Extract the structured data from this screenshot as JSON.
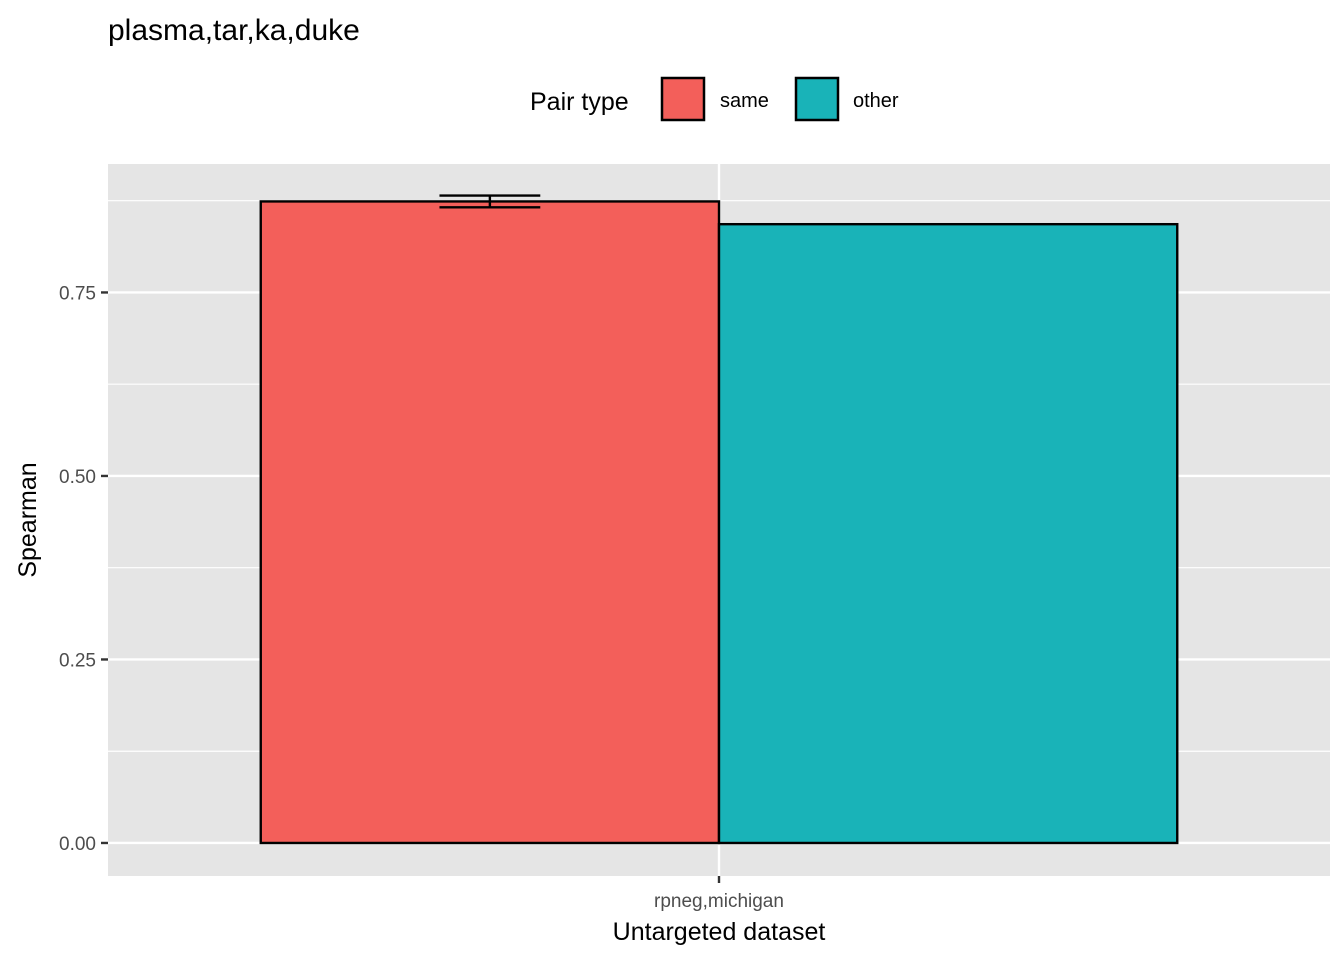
{
  "chart_data": {
    "type": "bar",
    "title": "plasma,tar,ka,duke",
    "xlabel": "Untargeted dataset",
    "ylabel": "Spearman",
    "categories": [
      "rpneg,michigan"
    ],
    "legend": {
      "title": "Pair type",
      "placement": "top"
    },
    "series": [
      {
        "name": "same",
        "color": "#F35F5A",
        "values": [
          0.874
        ],
        "error": [
          [
            0.866,
            0.882
          ]
        ]
      },
      {
        "name": "other",
        "color": "#19B3B8",
        "values": [
          0.843
        ]
      }
    ],
    "ylim": [
      -0.045,
      0.925
    ],
    "yticks": [
      0.0,
      0.25,
      0.5,
      0.75
    ],
    "ytick_labels": [
      "0.00",
      "0.25",
      "0.50",
      "0.75"
    ],
    "grid": true,
    "panel_background": "#E5E5E5"
  }
}
